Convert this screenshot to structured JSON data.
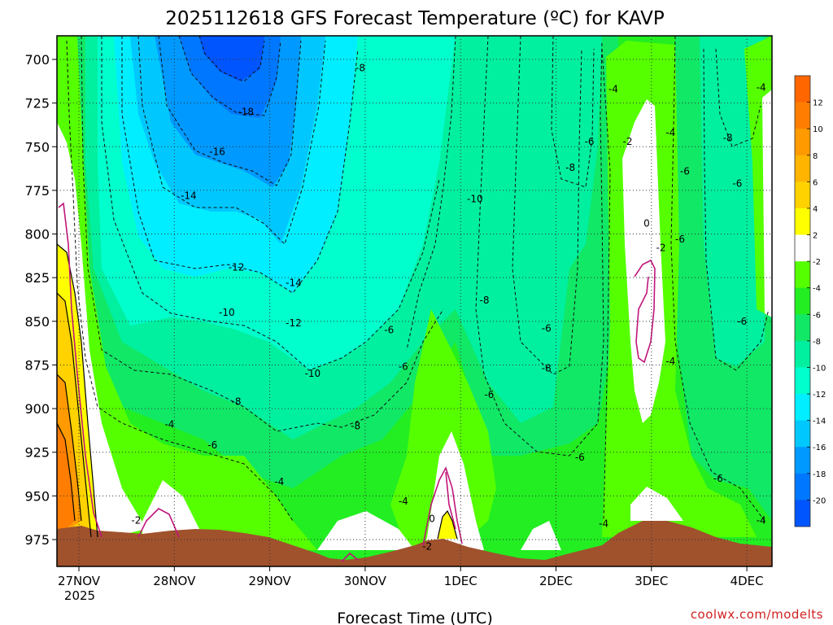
{
  "chart_data": {
    "type": "heatmap",
    "title": "2025112618 GFS Forecast Temperature (ºC) for KAVP",
    "xlabel": "Forecast Time (UTC)",
    "ylabel": "",
    "credit": "coolwx.com/modelts",
    "y_ticks": [
      "700",
      "725",
      "750",
      "775",
      "800",
      "825",
      "850",
      "875",
      "900",
      "925",
      "950",
      "975"
    ],
    "ylim": [
      988,
      688
    ],
    "y_inverted": true,
    "x_ticks": [
      "27NOV",
      "28NOV",
      "29NOV",
      "30NOV",
      "1DEC",
      "2DEC",
      "3DEC",
      "4DEC"
    ],
    "x_year_label": "2025",
    "grid": true,
    "colorbar": {
      "placement": "right",
      "tick_labels": [
        "12",
        "10",
        "8",
        "6",
        "4",
        "2",
        "-2",
        "-4",
        "-6",
        "-8",
        "-10",
        "-12",
        "-14",
        "-16",
        "-18",
        "-20"
      ],
      "bins": [
        {
          "range": [
            12,
            14
          ],
          "color": "#ff6600"
        },
        {
          "range": [
            10,
            12
          ],
          "color": "#ff7d00"
        },
        {
          "range": [
            8,
            10
          ],
          "color": "#ff9a00"
        },
        {
          "range": [
            6,
            8
          ],
          "color": "#ffb400"
        },
        {
          "range": [
            4,
            6
          ],
          "color": "#ffd200"
        },
        {
          "range": [
            2,
            4
          ],
          "color": "#ffff00"
        },
        {
          "range": [
            -2,
            2
          ],
          "color": "#ffffff"
        },
        {
          "range": [
            -4,
            -2
          ],
          "color": "#55ff00"
        },
        {
          "range": [
            -6,
            -4
          ],
          "color": "#22ee22"
        },
        {
          "range": [
            -8,
            -6
          ],
          "color": "#11e866"
        },
        {
          "range": [
            -10,
            -8
          ],
          "color": "#00f0a0"
        },
        {
          "range": [
            -12,
            -10
          ],
          "color": "#00ffcc"
        },
        {
          "range": [
            -14,
            -12
          ],
          "color": "#00eeff"
        },
        {
          "range": [
            -16,
            -14
          ],
          "color": "#00c8ff"
        },
        {
          "range": [
            -18,
            -16
          ],
          "color": "#0099ff"
        },
        {
          "range": [
            -20,
            -18
          ],
          "color": "#0077ff"
        },
        {
          "range": [
            -22,
            -20
          ],
          "color": "#0055ff"
        }
      ]
    },
    "terrain_color": "#a0522d",
    "contour_labels": [
      {
        "text": "-18",
        "day": 1.75,
        "p": 730
      },
      {
        "text": "-16",
        "day": 1.45,
        "p": 753
      },
      {
        "text": "-14",
        "day": 1.15,
        "p": 778
      },
      {
        "text": "-14",
        "day": 2.25,
        "p": 828
      },
      {
        "text": "-12",
        "day": 1.65,
        "p": 819
      },
      {
        "text": "-12",
        "day": 2.25,
        "p": 851
      },
      {
        "text": "-10",
        "day": 1.55,
        "p": 845
      },
      {
        "text": "-10",
        "day": 2.45,
        "p": 880
      },
      {
        "text": "-10",
        "day": 4.15,
        "p": 780
      },
      {
        "text": "-8",
        "day": 2.95,
        "p": 705
      },
      {
        "text": "-8",
        "day": 1.65,
        "p": 896
      },
      {
        "text": "-8",
        "day": 2.9,
        "p": 910
      },
      {
        "text": "-8",
        "day": 4.25,
        "p": 838
      },
      {
        "text": "-8",
        "day": 5.15,
        "p": 762
      },
      {
        "text": "-8",
        "day": 4.9,
        "p": 877
      },
      {
        "text": "-8",
        "day": 6.8,
        "p": 745
      },
      {
        "text": "-6",
        "day": 1.4,
        "p": 921
      },
      {
        "text": "-6",
        "day": 3.25,
        "p": 855
      },
      {
        "text": "-6",
        "day": 3.4,
        "p": 876
      },
      {
        "text": "-6",
        "day": 4.3,
        "p": 892
      },
      {
        "text": "-6",
        "day": 4.9,
        "p": 854
      },
      {
        "text": "-6",
        "day": 5.35,
        "p": 747
      },
      {
        "text": "-6",
        "day": 5.25,
        "p": 928
      },
      {
        "text": "-6",
        "day": 6.35,
        "p": 764
      },
      {
        "text": "-6",
        "day": 6.3,
        "p": 803
      },
      {
        "text": "-6",
        "day": 6.9,
        "p": 771
      },
      {
        "text": "-6",
        "day": 6.95,
        "p": 850
      },
      {
        "text": "-6",
        "day": 6.7,
        "p": 940
      },
      {
        "text": "-4",
        "day": 0.95,
        "p": 909
      },
      {
        "text": "-4",
        "day": 2.1,
        "p": 942
      },
      {
        "text": "-4",
        "day": 3.4,
        "p": 953
      },
      {
        "text": "-4",
        "day": 5.6,
        "p": 717
      },
      {
        "text": "-4",
        "day": 6.2,
        "p": 742
      },
      {
        "text": "-4",
        "day": 6.2,
        "p": 873
      },
      {
        "text": "-4",
        "day": 5.5,
        "p": 966
      },
      {
        "text": "-4",
        "day": 7.15,
        "p": 716
      },
      {
        "text": "-4",
        "day": 7.15,
        "p": 964
      },
      {
        "text": "-2",
        "day": 0.6,
        "p": 964
      },
      {
        "text": "-2",
        "day": 3.65,
        "p": 979
      },
      {
        "text": "-2",
        "day": 5.75,
        "p": 747
      },
      {
        "text": "-2",
        "day": 6.1,
        "p": 808
      },
      {
        "text": "0",
        "day": 3.7,
        "p": 963
      },
      {
        "text": "0",
        "day": 5.95,
        "p": 794
      }
    ]
  }
}
